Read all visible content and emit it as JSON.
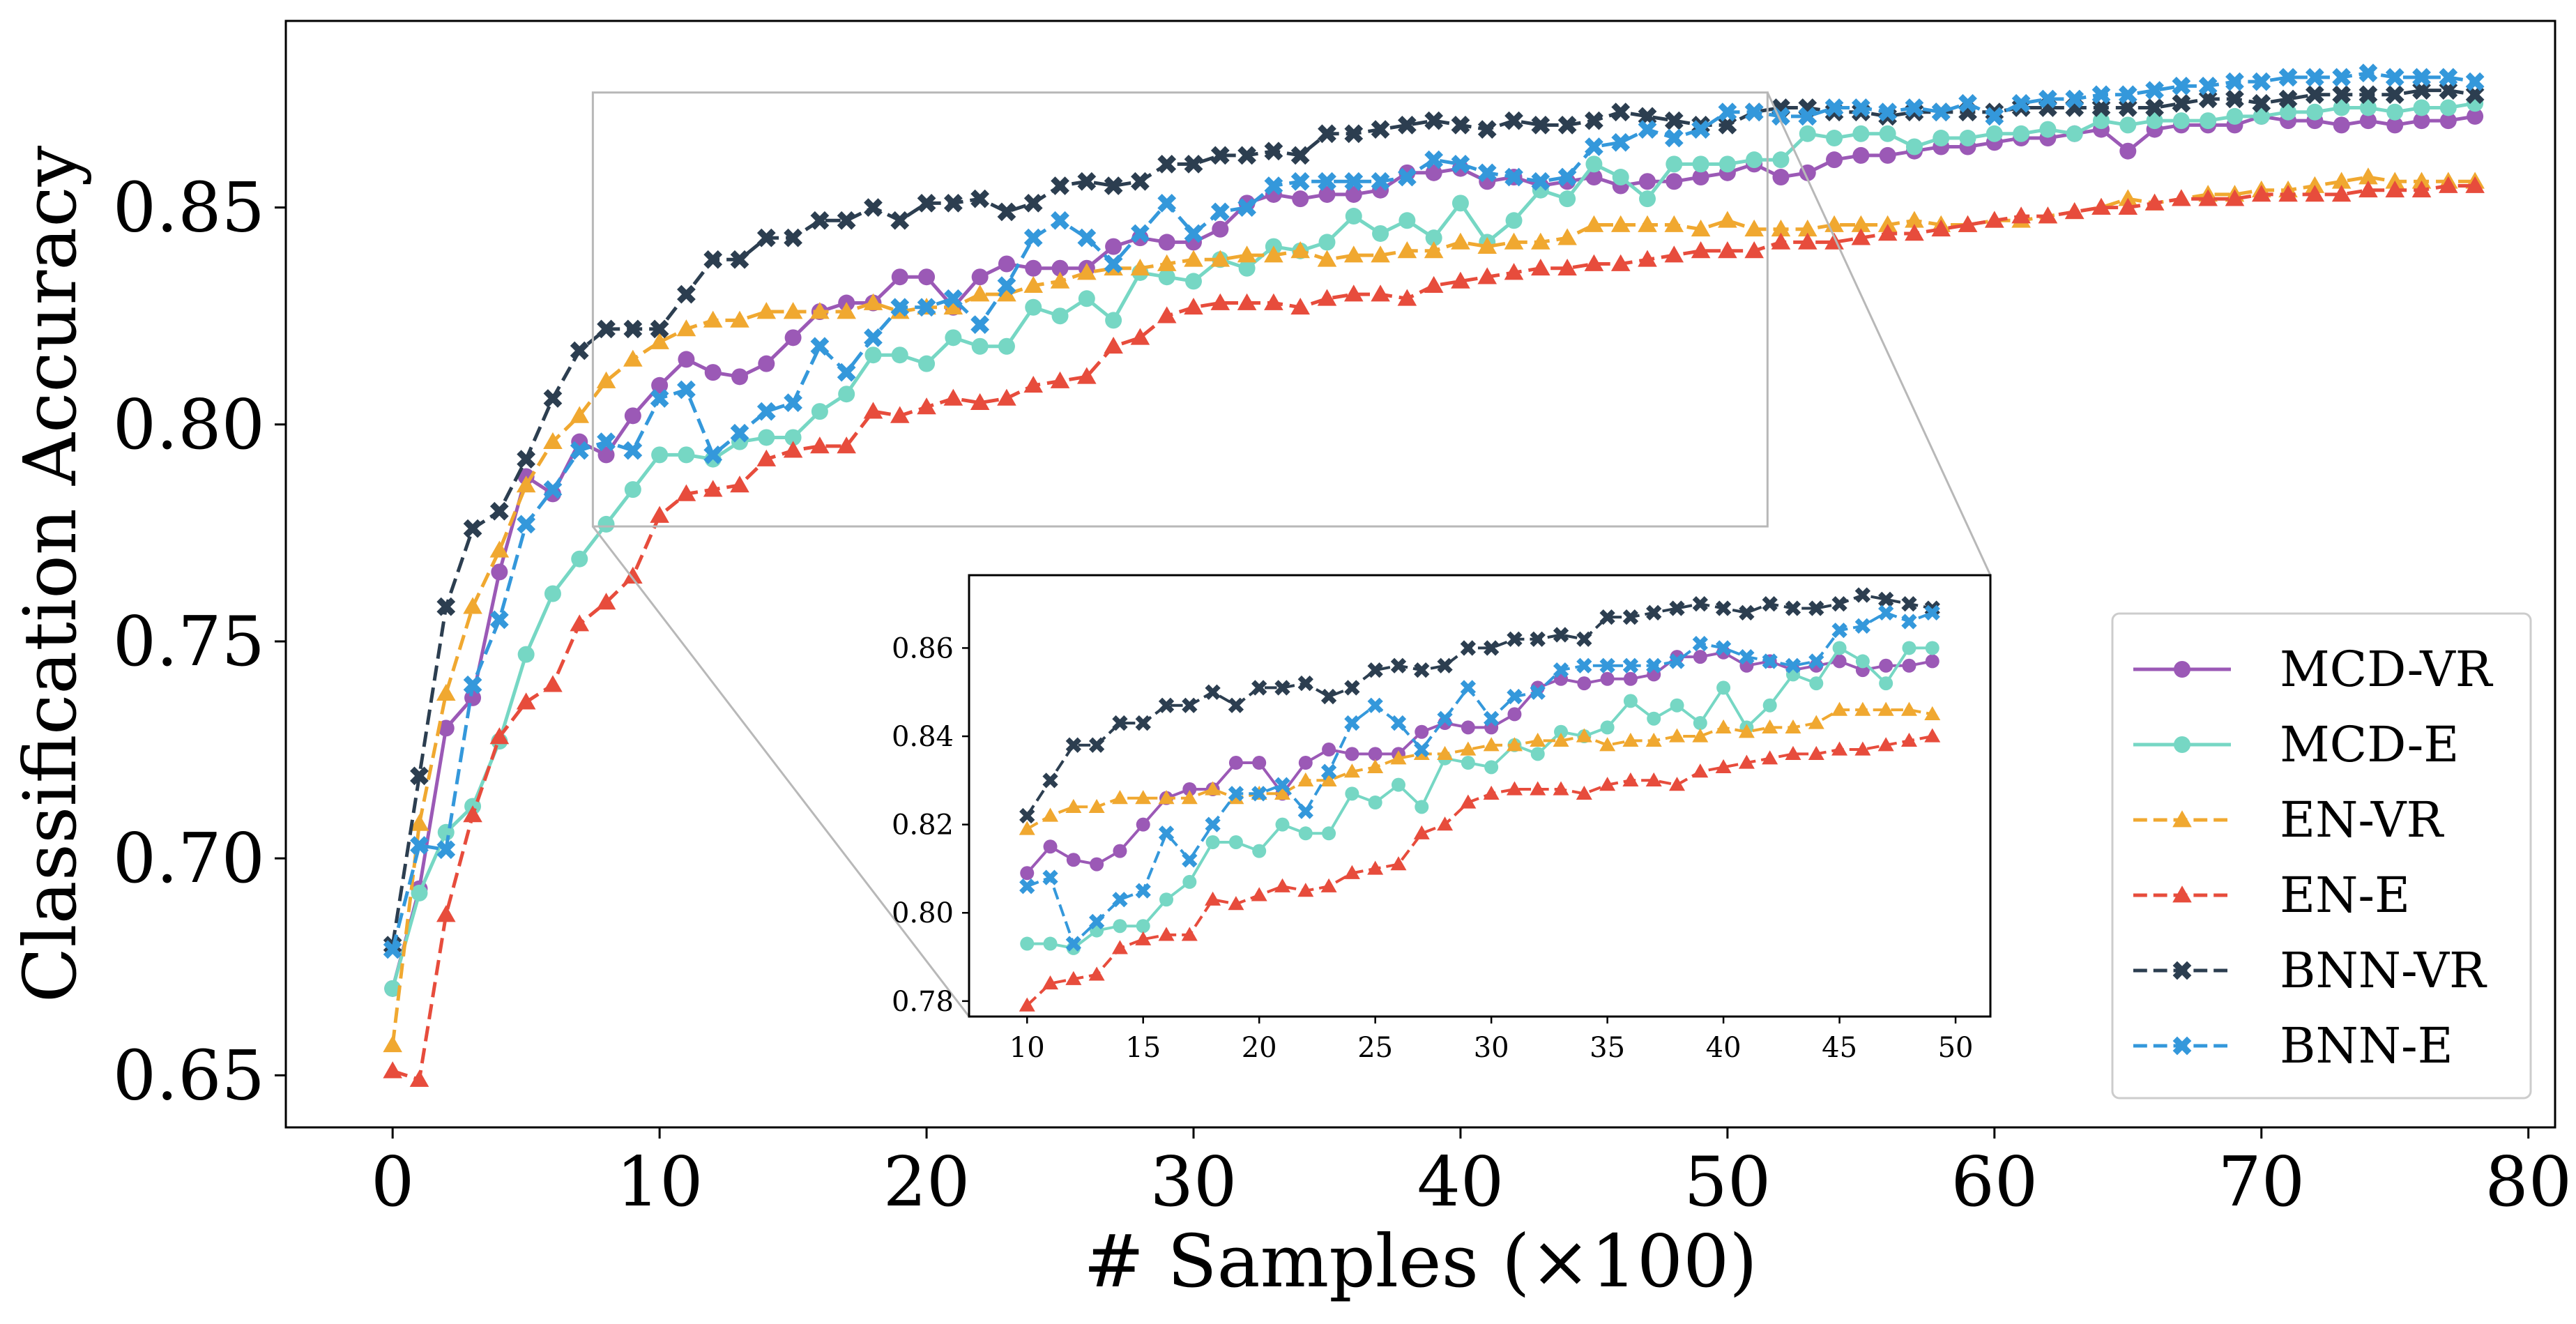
{
  "chart_data": {
    "type": "line",
    "xlabel": "# Samples (×100)",
    "ylabel": "Classification Accuracy",
    "xlim": [
      -4,
      81
    ],
    "ylim": [
      0.638,
      0.893
    ],
    "xticks": [
      0,
      10,
      20,
      30,
      40,
      50,
      60,
      70,
      80
    ],
    "yticks": [
      0.65,
      0.7,
      0.75,
      0.8,
      0.85
    ],
    "ytick_labels": [
      "0.65",
      "0.70",
      "0.75",
      "0.80",
      "0.85"
    ],
    "grid": false,
    "legend": "bottom-right",
    "x": [
      0,
      1,
      2,
      3,
      4,
      5,
      6,
      7,
      8,
      9,
      10,
      11,
      12,
      13,
      14,
      15,
      16,
      17,
      18,
      19,
      20,
      21,
      22,
      23,
      24,
      25,
      26,
      27,
      28,
      29,
      30,
      31,
      32,
      33,
      34,
      35,
      36,
      37,
      38,
      39,
      40,
      41,
      42,
      43,
      44,
      45,
      46,
      47,
      48,
      49,
      50,
      51,
      52,
      53,
      54,
      55,
      56,
      57,
      58,
      59,
      60,
      61,
      62,
      63,
      64,
      65,
      66,
      67,
      68,
      69,
      70,
      71,
      72,
      73,
      74,
      75,
      76,
      77,
      78
    ],
    "series": [
      {
        "name": "MCD-VR",
        "color": "#9b59b6",
        "marker": "circle",
        "linestyle": "solid",
        "values": [
          0.67,
          0.693,
          0.73,
          0.737,
          0.766,
          0.788,
          0.784,
          0.796,
          0.793,
          0.802,
          0.809,
          0.815,
          0.812,
          0.811,
          0.814,
          0.82,
          0.826,
          0.828,
          0.828,
          0.834,
          0.834,
          0.827,
          0.834,
          0.837,
          0.836,
          0.836,
          0.836,
          0.841,
          0.843,
          0.842,
          0.842,
          0.845,
          0.851,
          0.853,
          0.852,
          0.853,
          0.853,
          0.854,
          0.858,
          0.858,
          0.859,
          0.856,
          0.857,
          0.855,
          0.856,
          0.857,
          0.855,
          0.856,
          0.856,
          0.857,
          0.858,
          0.86,
          0.857,
          0.858,
          0.861,
          0.862,
          0.862,
          0.863,
          0.864,
          0.864,
          0.865,
          0.866,
          0.866,
          0.867,
          0.868,
          0.863,
          0.868,
          0.869,
          0.869,
          0.869,
          0.871,
          0.87,
          0.87,
          0.869,
          0.87,
          0.869,
          0.87,
          0.87,
          0.871
        ]
      },
      {
        "name": "MCD-E",
        "color": "#76d7c4",
        "marker": "circle",
        "linestyle": "solid",
        "values": [
          0.67,
          0.692,
          0.706,
          0.712,
          0.727,
          0.747,
          0.761,
          0.769,
          0.777,
          0.785,
          0.793,
          0.793,
          0.792,
          0.796,
          0.797,
          0.797,
          0.803,
          0.807,
          0.816,
          0.816,
          0.814,
          0.82,
          0.818,
          0.818,
          0.827,
          0.825,
          0.829,
          0.824,
          0.835,
          0.834,
          0.833,
          0.838,
          0.836,
          0.841,
          0.84,
          0.842,
          0.848,
          0.844,
          0.847,
          0.843,
          0.851,
          0.842,
          0.847,
          0.854,
          0.852,
          0.86,
          0.857,
          0.852,
          0.86,
          0.86,
          0.86,
          0.861,
          0.861,
          0.867,
          0.866,
          0.867,
          0.867,
          0.864,
          0.866,
          0.866,
          0.867,
          0.867,
          0.868,
          0.867,
          0.87,
          0.869,
          0.87,
          0.87,
          0.87,
          0.871,
          0.871,
          0.872,
          0.872,
          0.873,
          0.873,
          0.872,
          0.873,
          0.873,
          0.874
        ]
      },
      {
        "name": "EN-VR",
        "color": "#f0a830",
        "marker": "triangle",
        "linestyle": "dashed",
        "values": [
          0.657,
          0.708,
          0.738,
          0.758,
          0.771,
          0.786,
          0.796,
          0.802,
          0.81,
          0.815,
          0.819,
          0.822,
          0.824,
          0.824,
          0.826,
          0.826,
          0.826,
          0.826,
          0.828,
          0.826,
          0.827,
          0.827,
          0.83,
          0.83,
          0.832,
          0.833,
          0.835,
          0.836,
          0.836,
          0.837,
          0.838,
          0.838,
          0.839,
          0.839,
          0.84,
          0.838,
          0.839,
          0.839,
          0.84,
          0.84,
          0.842,
          0.841,
          0.842,
          0.842,
          0.843,
          0.846,
          0.846,
          0.846,
          0.846,
          0.845,
          0.847,
          0.845,
          0.845,
          0.845,
          0.846,
          0.846,
          0.846,
          0.847,
          0.846,
          0.846,
          0.847,
          0.847,
          0.848,
          0.849,
          0.85,
          0.852,
          0.851,
          0.852,
          0.853,
          0.853,
          0.854,
          0.854,
          0.855,
          0.856,
          0.857,
          0.856,
          0.856,
          0.856,
          0.856
        ]
      },
      {
        "name": "EN-E",
        "color": "#e74c3c",
        "marker": "triangle",
        "linestyle": "dashed",
        "values": [
          0.651,
          0.649,
          0.687,
          0.71,
          0.728,
          0.736,
          0.74,
          0.754,
          0.759,
          0.765,
          0.779,
          0.784,
          0.785,
          0.786,
          0.792,
          0.794,
          0.795,
          0.795,
          0.803,
          0.802,
          0.804,
          0.806,
          0.805,
          0.806,
          0.809,
          0.81,
          0.811,
          0.818,
          0.82,
          0.825,
          0.827,
          0.828,
          0.828,
          0.828,
          0.827,
          0.829,
          0.83,
          0.83,
          0.829,
          0.832,
          0.833,
          0.834,
          0.835,
          0.836,
          0.836,
          0.837,
          0.837,
          0.838,
          0.839,
          0.84,
          0.84,
          0.84,
          0.842,
          0.842,
          0.842,
          0.843,
          0.844,
          0.844,
          0.845,
          0.846,
          0.847,
          0.848,
          0.848,
          0.849,
          0.85,
          0.85,
          0.851,
          0.852,
          0.852,
          0.852,
          0.853,
          0.853,
          0.853,
          0.853,
          0.854,
          0.854,
          0.854,
          0.855,
          0.855
        ]
      },
      {
        "name": "BNN-VR",
        "color": "#2c3e50",
        "marker": "x",
        "linestyle": "dashed",
        "values": [
          0.68,
          0.719,
          0.758,
          0.776,
          0.78,
          0.792,
          0.806,
          0.817,
          0.822,
          0.822,
          0.822,
          0.83,
          0.838,
          0.838,
          0.843,
          0.843,
          0.847,
          0.847,
          0.85,
          0.847,
          0.851,
          0.851,
          0.852,
          0.849,
          0.851,
          0.855,
          0.856,
          0.855,
          0.856,
          0.86,
          0.86,
          0.862,
          0.862,
          0.863,
          0.862,
          0.867,
          0.867,
          0.868,
          0.869,
          0.87,
          0.869,
          0.868,
          0.87,
          0.869,
          0.869,
          0.87,
          0.872,
          0.871,
          0.87,
          0.869,
          0.869,
          0.872,
          0.873,
          0.873,
          0.872,
          0.872,
          0.871,
          0.872,
          0.872,
          0.872,
          0.872,
          0.873,
          0.873,
          0.873,
          0.873,
          0.873,
          0.873,
          0.874,
          0.875,
          0.875,
          0.874,
          0.875,
          0.876,
          0.876,
          0.876,
          0.876,
          0.877,
          0.877,
          0.876
        ]
      },
      {
        "name": "BNN-E",
        "color": "#3498db",
        "marker": "x",
        "linestyle": "dashed",
        "values": [
          0.679,
          0.703,
          0.702,
          0.74,
          0.755,
          0.777,
          0.785,
          0.794,
          0.796,
          0.794,
          0.806,
          0.808,
          0.793,
          0.798,
          0.803,
          0.805,
          0.818,
          0.812,
          0.82,
          0.827,
          0.827,
          0.829,
          0.823,
          0.832,
          0.843,
          0.847,
          0.843,
          0.837,
          0.844,
          0.851,
          0.844,
          0.849,
          0.85,
          0.855,
          0.856,
          0.856,
          0.856,
          0.856,
          0.857,
          0.861,
          0.86,
          0.858,
          0.857,
          0.856,
          0.857,
          0.864,
          0.865,
          0.868,
          0.866,
          0.868,
          0.872,
          0.872,
          0.871,
          0.871,
          0.873,
          0.873,
          0.872,
          0.873,
          0.872,
          0.874,
          0.871,
          0.874,
          0.875,
          0.875,
          0.876,
          0.876,
          0.877,
          0.878,
          0.878,
          0.879,
          0.879,
          0.88,
          0.88,
          0.88,
          0.881,
          0.88,
          0.88,
          0.88,
          0.879
        ]
      }
    ],
    "inset": {
      "x_range": [
        10,
        49
      ],
      "xlim": [
        7.5,
        51.5
      ],
      "ylim": [
        0.7765,
        0.8765
      ],
      "xticks": [
        10,
        15,
        20,
        25,
        30,
        35,
        40,
        45,
        50
      ],
      "yticks": [
        0.78,
        0.8,
        0.82,
        0.84,
        0.86
      ],
      "ytick_labels": [
        "0.78",
        "0.80",
        "0.82",
        "0.84",
        "0.86"
      ]
    }
  }
}
